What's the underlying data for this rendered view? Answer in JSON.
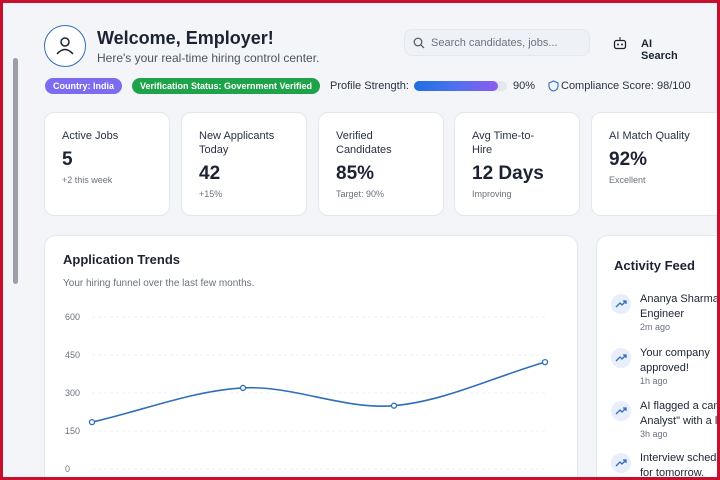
{
  "header": {
    "title": "Welcome, Employer!",
    "subtitle": "Here's your real-time hiring control center.",
    "search_placeholder": "Search candidates, jobs...",
    "ai_search": "AI Search"
  },
  "status": {
    "badges": [
      "Country: India",
      "Verification Status: Government Verified"
    ],
    "profile_strength_label": "Profile Strength:",
    "profile_strength_value": "90%",
    "compliance": "Compliance Score: 98/100"
  },
  "stats": [
    {
      "label": "Active Jobs",
      "value": "5",
      "note": "+2 this week"
    },
    {
      "label": "New Applicants Today",
      "value": "42",
      "note": "+15%"
    },
    {
      "label": "Verified Candidates",
      "value": "85%",
      "note": "Target: 90%"
    },
    {
      "label": "Avg Time-to-Hire",
      "value": "12 Days",
      "note": "Improving"
    },
    {
      "label": "AI Match Quality",
      "value": "92%",
      "note": "Excellent"
    }
  ],
  "chart_data": {
    "type": "line",
    "title": "Application Trends",
    "subtitle": "Your hiring funnel over the last few months.",
    "categories": [
      null,
      null,
      null,
      null
    ],
    "series": [
      {
        "color": "#2f6fb8",
        "values": [
          185,
          320,
          250,
          422
        ]
      }
    ],
    "ylim": [
      0,
      600
    ],
    "yticks": [
      0,
      150,
      300,
      450,
      600
    ],
    "grid": true
  },
  "activity_feed": {
    "title": "Activity Feed",
    "items": [
      {
        "lines": [
          "Ananya Sharma",
          "Engineer"
        ],
        "time": "2m ago"
      },
      {
        "lines": [
          "Your company",
          "approved!"
        ],
        "time": "1h ago"
      },
      {
        "lines": [
          "AI flagged a can",
          "Analyst\" with a l"
        ],
        "time": "3h ago"
      },
      {
        "lines": [
          "Interview sched",
          "for tomorrow."
        ],
        "time": ""
      }
    ]
  }
}
